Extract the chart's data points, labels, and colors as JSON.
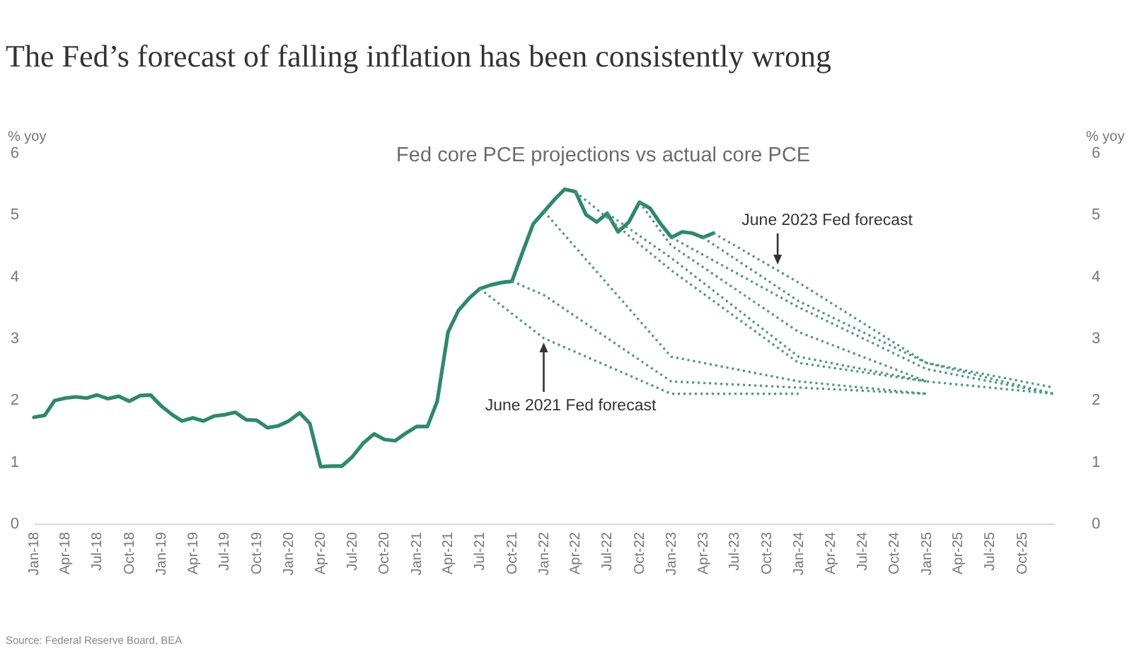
{
  "chart_data": {
    "type": "line",
    "title": "The Fed’s forecast of falling inflation has been consistently wrong",
    "subtitle": "Fed core PCE projections vs actual core PCE",
    "ylabel": "% yoy",
    "y2label": "% yoy",
    "xlim": [
      "2018-01",
      "2026-01"
    ],
    "xticks": [
      {
        "value": "2018-01",
        "label": "Jan-18"
      },
      {
        "value": "2018-04",
        "label": "Apr-18"
      },
      {
        "value": "2018-07",
        "label": "Jul-18"
      },
      {
        "value": "2018-10",
        "label": "Oct-18"
      },
      {
        "value": "2019-01",
        "label": "Jan-19"
      },
      {
        "value": "2019-04",
        "label": "Apr-19"
      },
      {
        "value": "2019-07",
        "label": "Jul-19"
      },
      {
        "value": "2019-10",
        "label": "Oct-19"
      },
      {
        "value": "2020-01",
        "label": "Jan-20"
      },
      {
        "value": "2020-04",
        "label": "Apr-20"
      },
      {
        "value": "2020-07",
        "label": "Jul-20"
      },
      {
        "value": "2020-10",
        "label": "Oct-20"
      },
      {
        "value": "2021-01",
        "label": "Jan-21"
      },
      {
        "value": "2021-04",
        "label": "Apr-21"
      },
      {
        "value": "2021-07",
        "label": "Jul-21"
      },
      {
        "value": "2021-10",
        "label": "Oct-21"
      },
      {
        "value": "2022-01",
        "label": "Jan-22"
      },
      {
        "value": "2022-04",
        "label": "Apr-22"
      },
      {
        "value": "2022-07",
        "label": "Jul-22"
      },
      {
        "value": "2022-10",
        "label": "Oct-22"
      },
      {
        "value": "2023-01",
        "label": "Jan-23"
      },
      {
        "value": "2023-04",
        "label": "Apr-23"
      },
      {
        "value": "2023-07",
        "label": "Jul-23"
      },
      {
        "value": "2023-10",
        "label": "Oct-23"
      },
      {
        "value": "2024-01",
        "label": "Jan-24"
      },
      {
        "value": "2024-04",
        "label": "Apr-24"
      },
      {
        "value": "2024-07",
        "label": "Jul-24"
      },
      {
        "value": "2024-10",
        "label": "Oct-24"
      },
      {
        "value": "2025-01",
        "label": "Jan-25"
      },
      {
        "value": "2025-04",
        "label": "Apr-25"
      },
      {
        "value": "2025-07",
        "label": "Jul-25"
      },
      {
        "value": "2025-10",
        "label": "Oct-25"
      }
    ],
    "ylim": [
      0,
      6
    ],
    "yticks": [
      0,
      1,
      2,
      3,
      4,
      5,
      6
    ],
    "y2lim": [
      0,
      6
    ],
    "y2ticks": [
      0,
      1,
      2,
      3,
      4,
      5,
      6
    ],
    "grid": false,
    "line_style": "solid",
    "series": [
      {
        "color": "#2b8a6c",
        "x": [
          "2018-01",
          "2018-02",
          "2018-03",
          "2018-04",
          "2018-05",
          "2018-06",
          "2018-07",
          "2018-08",
          "2018-09",
          "2018-10",
          "2018-11",
          "2018-12",
          "2019-01",
          "2019-02",
          "2019-03",
          "2019-04",
          "2019-05",
          "2019-06",
          "2019-07",
          "2019-08",
          "2019-09",
          "2019-10",
          "2019-11",
          "2019-12",
          "2020-01",
          "2020-02",
          "2020-03",
          "2020-04",
          "2020-05",
          "2020-06",
          "2020-07",
          "2020-08",
          "2020-09",
          "2020-10",
          "2020-11",
          "2020-12",
          "2021-01",
          "2021-02",
          "2021-03",
          "2021-04",
          "2021-05",
          "2021-06",
          "2021-07",
          "2021-08",
          "2021-09",
          "2021-10",
          "2021-11",
          "2021-12",
          "2022-01",
          "2022-02",
          "2022-03",
          "2022-04",
          "2022-05",
          "2022-06",
          "2022-07",
          "2022-08",
          "2022-09",
          "2022-10",
          "2022-11",
          "2022-12",
          "2023-01",
          "2023-02",
          "2023-03",
          "2023-04",
          "2023-05"
        ],
        "values": [
          1.72,
          1.75,
          1.99,
          2.03,
          2.05,
          2.03,
          2.08,
          2.02,
          2.06,
          1.98,
          2.07,
          2.08,
          1.9,
          1.76,
          1.66,
          1.71,
          1.66,
          1.74,
          1.76,
          1.8,
          1.68,
          1.67,
          1.55,
          1.58,
          1.66,
          1.79,
          1.62,
          0.92,
          0.93,
          0.93,
          1.08,
          1.3,
          1.45,
          1.36,
          1.34,
          1.46,
          1.57,
          1.57,
          1.98,
          3.1,
          3.45,
          3.65,
          3.8,
          3.86,
          3.9,
          3.92,
          4.4,
          4.85,
          5.05,
          5.25,
          5.41,
          5.37,
          5.0,
          4.88,
          5.02,
          4.72,
          4.88,
          5.2,
          5.1,
          4.85,
          4.63,
          4.72,
          4.7,
          4.63,
          4.7
        ]
      },
      {
        "color": "#4d9b83",
        "line_style": "dotted",
        "x": [
          "2021-07",
          "2021-12-31",
          "2022-12-31",
          "2023-12-31"
        ],
        "values": [
          3.8,
          3.0,
          2.1,
          2.1
        ]
      },
      {
        "color": "#4d9b83",
        "line_style": "dotted",
        "x": [
          "2021-10",
          "2021-12-31",
          "2022-12-31",
          "2023-12-31",
          "2024-12-31"
        ],
        "values": [
          3.92,
          3.7,
          2.3,
          2.2,
          2.1
        ]
      },
      {
        "color": "#4d9b83",
        "line_style": "dotted",
        "x": [
          "2022-01",
          "2022-12-31",
          "2023-12-31",
          "2024-12-31"
        ],
        "values": [
          5.05,
          2.7,
          2.3,
          2.1
        ]
      },
      {
        "color": "#4d9b83",
        "line_style": "dotted",
        "x": [
          "2022-04",
          "2022-12-31",
          "2023-12-31",
          "2024-12-31"
        ],
        "values": [
          5.37,
          4.1,
          2.6,
          2.3
        ]
      },
      {
        "color": "#4d9b83",
        "line_style": "dotted",
        "x": [
          "2022-07",
          "2022-12-31",
          "2023-12-31",
          "2024-12-31"
        ],
        "values": [
          5.02,
          4.3,
          2.7,
          2.3
        ]
      },
      {
        "color": "#4d9b83",
        "line_style": "dotted",
        "x": [
          "2022-10",
          "2022-12-31",
          "2023-12-31",
          "2024-12-31",
          "2025-12-31"
        ],
        "values": [
          5.2,
          4.5,
          3.1,
          2.3,
          2.1
        ]
      },
      {
        "color": "#4d9b83",
        "line_style": "dotted",
        "x": [
          "2023-01",
          "2023-12-31",
          "2024-12-31",
          "2025-12-31"
        ],
        "values": [
          4.63,
          3.5,
          2.5,
          2.1
        ]
      },
      {
        "color": "#4d9b83",
        "line_style": "dotted",
        "x": [
          "2023-04",
          "2023-12-31",
          "2024-12-31",
          "2025-12-31"
        ],
        "values": [
          4.63,
          3.6,
          2.6,
          2.1
        ]
      },
      {
        "color": "#4d9b83",
        "line_style": "dotted",
        "x": [
          "2023-05",
          "2023-12-31",
          "2024-12-31",
          "2025-12-31"
        ],
        "values": [
          4.7,
          3.9,
          2.6,
          2.2
        ]
      }
    ],
    "annotations": [
      {
        "text": "June 2023 Fed forecast",
        "x": "2023-11",
        "y": 4.1
      },
      {
        "text": "June 2021 Fed forecast",
        "x": "2021-12-31",
        "y": 3.0
      },
      "Source: Federal Reserve Board, BEA"
    ]
  }
}
